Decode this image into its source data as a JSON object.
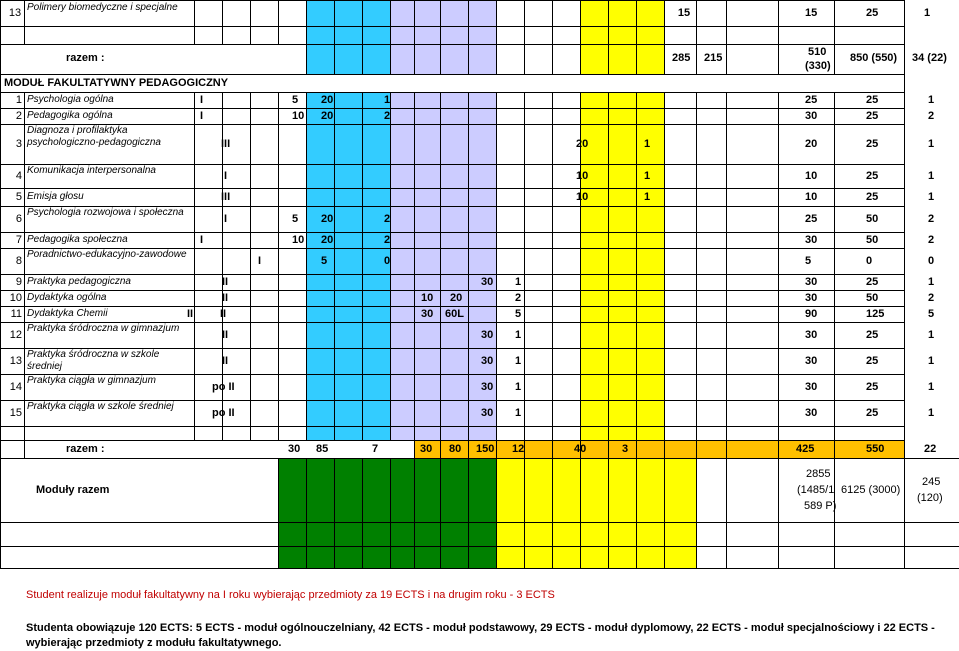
{
  "colors": {
    "cyan": "#33ccff",
    "lilac": "#ccccff",
    "green": "#008000",
    "yellow": "#ffff00",
    "orange": "#ffc000",
    "white": "#ffffff",
    "red_text": "#c00000"
  },
  "top_row": {
    "num": "13",
    "name": "Polimery biomedyczne i specjalne",
    "v1": "15",
    "v2": "15",
    "v3": "25",
    "v4": "1"
  },
  "razem_top": {
    "label": "razem :",
    "v1": "285",
    "v2": "215",
    "v3a": "510",
    "v3b": "(330)",
    "v4": "850 (550)",
    "v5": "34 (22)"
  },
  "section_title": "MODUŁ FAKULTATYWNY PEDAGOGICZNY",
  "rows": [
    {
      "num": "1",
      "name": "Psychologia ogólna",
      "sem": "I",
      "h1": "5",
      "h2": "20",
      "e": "1",
      "t1": "25",
      "t2": "25",
      "t3": "1"
    },
    {
      "num": "2",
      "name": "Pedagogika ogólna",
      "sem": "I",
      "h1": "10",
      "h2": "20",
      "e": "2",
      "t1": "30",
      "t2": "25",
      "t3": "2"
    },
    {
      "num": "3",
      "name": "Diagnoza i profilaktyka psychologiczno-pedagogiczna",
      "sem": "III",
      "h1": "20",
      "h2": "1",
      "t1": "20",
      "t2": "25",
      "t3": "1"
    },
    {
      "num": "4",
      "name": "Komunikacja interpersonalna",
      "sem": "I",
      "h1": "10",
      "h2": "1",
      "t1": "10",
      "t2": "25",
      "t3": "1"
    },
    {
      "num": "5",
      "name": "Emisja głosu",
      "sem": "III",
      "h1": "10",
      "h2": "1",
      "t1": "10",
      "t2": "25",
      "t3": "1"
    },
    {
      "num": "6",
      "name": "Psychologia rozwojowa i społeczna",
      "sem": "I",
      "h1": "5",
      "h2": "20",
      "e": "2",
      "t1": "25",
      "t2": "50",
      "t3": "2"
    },
    {
      "num": "7",
      "name": "Pedagogika społeczna",
      "sem": "I",
      "h1": "10",
      "h2": "20",
      "e": "2",
      "t1": "30",
      "t2": "50",
      "t3": "2"
    },
    {
      "num": "8",
      "name": "Poradnictwo-edukacyjno-zawodowe",
      "sem": "I",
      "h1": "5",
      "e": "0",
      "t1": "5",
      "t2": "0",
      "t3": "0"
    },
    {
      "num": "9",
      "name": "Praktyka pedagogiczna",
      "sem": "II",
      "h1": "30",
      "h2": "1",
      "t1": "30",
      "t2": "25",
      "t3": "1"
    },
    {
      "num": "10",
      "name": "Dydaktyka ogólna",
      "sem": "II",
      "h1": "10",
      "h2": "20",
      "e": "2",
      "t1": "30",
      "t2": "50",
      "t3": "2"
    },
    {
      "num": "11",
      "name": "Dydaktyka Chemii",
      "sem_a": "II",
      "sem": "II",
      "h1": "30",
      "h2": "60L",
      "e": "5",
      "t1": "90",
      "t2": "125",
      "t3": "5"
    },
    {
      "num": "12",
      "name": "Praktyka śródroczna w gimnazjum",
      "sem": "II",
      "h1": "30",
      "h2": "1",
      "t1": "30",
      "t2": "25",
      "t3": "1"
    },
    {
      "num": "13",
      "name": "Praktyka śródroczna w szkole średniej",
      "sem": "II",
      "h1": "30",
      "h2": "1",
      "t1": "30",
      "t2": "25",
      "t3": "1"
    },
    {
      "num": "14",
      "name": "Praktyka ciągła w gimnazjum",
      "sem": "po II",
      "h1": "30",
      "h2": "1",
      "t1": "30",
      "t2": "25",
      "t3": "1"
    },
    {
      "num": "15",
      "name": "Praktyka ciągła w szkole średniej",
      "sem": "po II",
      "h1": "30",
      "h2": "1",
      "t1": "30",
      "t2": "25",
      "t3": "1"
    }
  ],
  "razem_bottom": {
    "label": "razem :",
    "values": [
      "30",
      "85",
      "7",
      "30",
      "80",
      "150",
      "12",
      "40",
      "3",
      "425",
      "550",
      "22"
    ]
  },
  "moduly": {
    "label": "Moduły razem",
    "v1a": "2855",
    "v1b": "(1485/1",
    "v1c": "589 P)",
    "v2": "6125 (3000)",
    "v3a": "245",
    "v3b": "(120)"
  },
  "notes": {
    "red": "Student realizuje moduł fakultatywny na I roku wybierając przedmioty za 19 ECTS i na drugim roku - 3 ECTS",
    "bold_line1": "Studenta obowiązuje 120 ECTS: 5 ECTS - moduł ogólnouczelniany, 42 ECTS - moduł podstawowy, 29 ECTS - moduł dyplomowy, 22 ECTS - moduł specjalnościowy i 22 ECTS -",
    "bold_line2": "wybierając przedmioty z modułu fakultatywnego."
  }
}
